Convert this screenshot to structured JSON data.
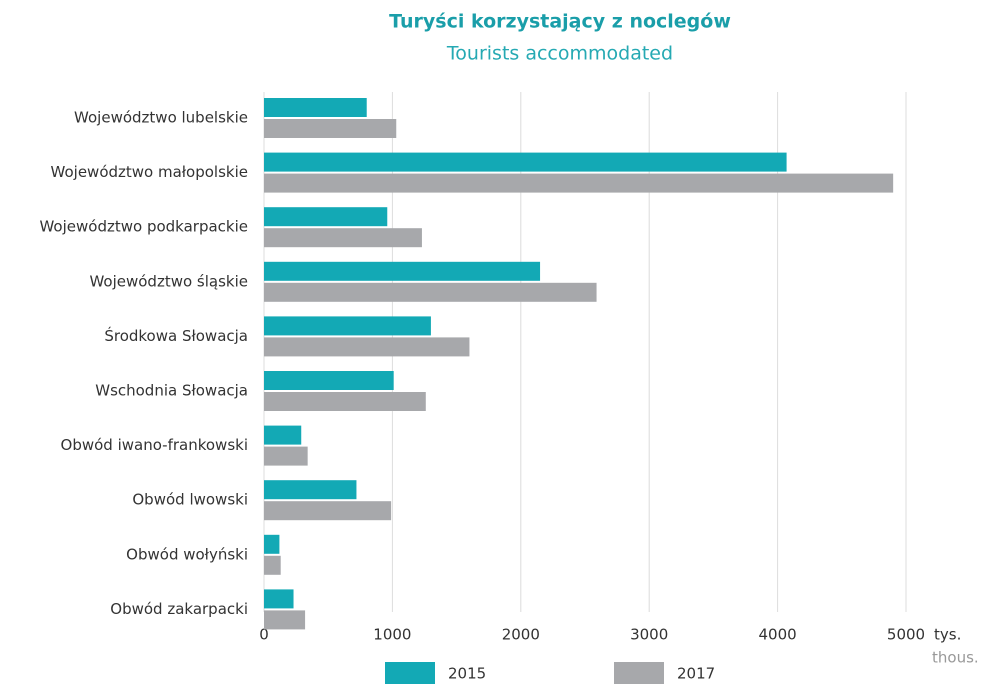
{
  "chart_data": {
    "type": "bar",
    "orientation": "horizontal",
    "title": "Turyści korzystający z noclegów",
    "subtitle": "Tourists accommodated",
    "x_unit_label": "tys.",
    "x_unit_label_en": "thous.",
    "categories": [
      "Województwo lubelskie",
      "Województwo małopolskie",
      "Województwo podkarpackie",
      "Województwo śląskie",
      "Środkowa Słowacja",
      "Wschodnia Słowacja",
      "Obwód iwano-frankowski",
      "Obwód lwowski",
      "Obwód wołyński",
      "Obwód zakarpacki"
    ],
    "series": [
      {
        "name": "2015",
        "color": "#13a9b5",
        "values": [
          800,
          4070,
          960,
          2150,
          1300,
          1010,
          290,
          720,
          120,
          230
        ]
      },
      {
        "name": "2017",
        "color": "#a7a8ab",
        "values": [
          1030,
          4900,
          1230,
          2590,
          1600,
          1260,
          340,
          990,
          130,
          320
        ]
      }
    ],
    "xlim": [
      0,
      5000
    ],
    "xticks": [
      0,
      1000,
      2000,
      3000,
      4000,
      5000
    ],
    "grid": true,
    "legend": "bottom"
  }
}
